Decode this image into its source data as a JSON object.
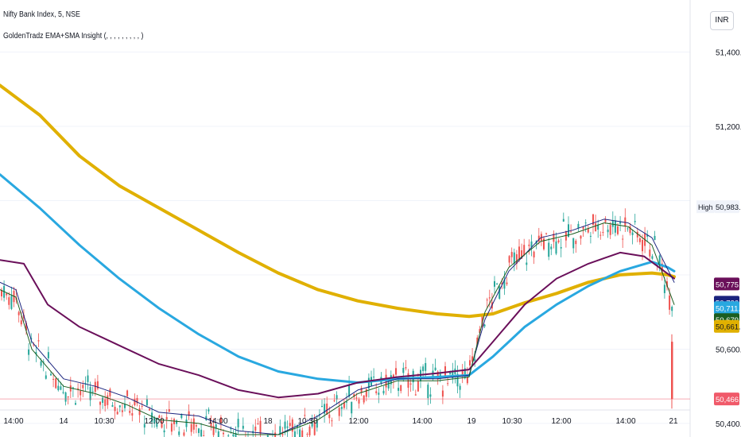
{
  "header": {
    "title": "Nifty Bank Index, 5, NSE",
    "indicator": "GoldenTradz EMA+SMA Insight (, , , , , , , , , )"
  },
  "currency_button": "INR",
  "price_axis": {
    "ticks": [
      {
        "value": 51400,
        "label": "51,400.00"
      },
      {
        "value": 51200,
        "label": "51,200.00"
      },
      {
        "value": 50600,
        "label": "50,600.00"
      },
      {
        "value": 50400,
        "label": "50,400.00"
      }
    ],
    "labels": [
      {
        "value": 50983.5,
        "label": "50,983.50",
        "bg": "#f0f3fa",
        "fg": "#131722",
        "tag": "High"
      },
      {
        "value": 50775.57,
        "label": "50,775.57",
        "bg": "#6a0f5a",
        "fg": "#ffffff"
      },
      {
        "value": 50726.29,
        "label": "50,726.29",
        "bg": "#1a237e",
        "fg": "#ffffff"
      },
      {
        "value": 50711.56,
        "label": "50,711.56",
        "bg": "#29a8e0",
        "fg": "#ffffff"
      },
      {
        "value": 50679.58,
        "label": "50,679.58",
        "bg": "#1b5e20",
        "fg": "#ffffff"
      },
      {
        "value": 50661.48,
        "label": "50,661.48",
        "bg": "#e0b000",
        "fg": "#131722"
      },
      {
        "value": 50466.0,
        "label": "50,466.00",
        "bg": "#f05a6a",
        "fg": "#ffffff"
      }
    ]
  },
  "time_axis": [
    "14:00",
    "14",
    "10:30",
    "12:00",
    "14:00",
    "18",
    "10:30",
    "12:00",
    "14:00",
    "19",
    "10:30",
    "12:00",
    "14:00",
    "21"
  ],
  "chart_data": {
    "type": "candlestick",
    "title": "Nifty Bank Index, 5, NSE",
    "ylim": [
      50370,
      51540
    ],
    "last_price": 50466.0,
    "x_labels": [
      "14:00",
      "14",
      "10:30",
      "12:00",
      "14:00",
      "18",
      "10:30",
      "12:00",
      "14:00",
      "19",
      "10:30",
      "12:00",
      "14:00",
      "21"
    ],
    "series": [
      {
        "color": "#e0b000",
        "type": "line",
        "points": [
          [
            0,
            51310
          ],
          [
            50,
            51230
          ],
          [
            100,
            51120
          ],
          [
            150,
            51040
          ],
          [
            200,
            50980
          ],
          [
            250,
            50920
          ],
          [
            300,
            50860
          ],
          [
            350,
            50805
          ],
          [
            400,
            50760
          ],
          [
            450,
            50730
          ],
          [
            500,
            50710
          ],
          [
            550,
            50695
          ],
          [
            590,
            50688
          ],
          [
            620,
            50695
          ],
          [
            660,
            50725
          ],
          [
            700,
            50750
          ],
          [
            740,
            50780
          ],
          [
            780,
            50800
          ],
          [
            820,
            50805
          ],
          [
            840,
            50800
          ],
          [
            848,
            50795
          ]
        ]
      },
      {
        "color": "#29a8e0",
        "type": "line",
        "points": [
          [
            0,
            51070
          ],
          [
            50,
            50980
          ],
          [
            100,
            50880
          ],
          [
            150,
            50790
          ],
          [
            200,
            50710
          ],
          [
            250,
            50640
          ],
          [
            300,
            50580
          ],
          [
            350,
            50540
          ],
          [
            400,
            50520
          ],
          [
            450,
            50510
          ],
          [
            500,
            50520
          ],
          [
            550,
            50525
          ],
          [
            590,
            50530
          ],
          [
            620,
            50580
          ],
          [
            660,
            50660
          ],
          [
            700,
            50720
          ],
          [
            740,
            50770
          ],
          [
            780,
            50810
          ],
          [
            820,
            50835
          ],
          [
            840,
            50820
          ],
          [
            848,
            50810
          ]
        ]
      },
      {
        "color": "#6a0f5a",
        "type": "line",
        "points": [
          [
            0,
            50840
          ],
          [
            30,
            50830
          ],
          [
            60,
            50720
          ],
          [
            100,
            50660
          ],
          [
            150,
            50610
          ],
          [
            200,
            50560
          ],
          [
            250,
            50530
          ],
          [
            300,
            50490
          ],
          [
            350,
            50470
          ],
          [
            400,
            50480
          ],
          [
            450,
            50510
          ],
          [
            500,
            50525
          ],
          [
            550,
            50535
          ],
          [
            590,
            50545
          ],
          [
            620,
            50620
          ],
          [
            660,
            50720
          ],
          [
            700,
            50790
          ],
          [
            740,
            50830
          ],
          [
            780,
            50860
          ],
          [
            810,
            50850
          ],
          [
            848,
            50790
          ]
        ]
      },
      {
        "color": "#1a237e",
        "type": "line",
        "points": [
          [
            0,
            50780
          ],
          [
            20,
            50760
          ],
          [
            40,
            50620
          ],
          [
            80,
            50520
          ],
          [
            120,
            50500
          ],
          [
            160,
            50470
          ],
          [
            200,
            50430
          ],
          [
            250,
            50420
          ],
          [
            300,
            50380
          ],
          [
            350,
            50370
          ],
          [
            400,
            50420
          ],
          [
            450,
            50490
          ],
          [
            500,
            50520
          ],
          [
            550,
            50520
          ],
          [
            590,
            50530
          ],
          [
            610,
            50680
          ],
          [
            640,
            50810
          ],
          [
            680,
            50900
          ],
          [
            720,
            50920
          ],
          [
            760,
            50950
          ],
          [
            790,
            50940
          ],
          [
            820,
            50900
          ],
          [
            848,
            50780
          ]
        ]
      },
      {
        "color": "#1b5e20",
        "type": "line",
        "points": [
          [
            0,
            50760
          ],
          [
            20,
            50740
          ],
          [
            40,
            50600
          ],
          [
            80,
            50500
          ],
          [
            120,
            50480
          ],
          [
            160,
            50450
          ],
          [
            200,
            50410
          ],
          [
            250,
            50400
          ],
          [
            300,
            50370
          ],
          [
            350,
            50370
          ],
          [
            400,
            50410
          ],
          [
            450,
            50480
          ],
          [
            500,
            50515
          ],
          [
            550,
            50515
          ],
          [
            590,
            50525
          ],
          [
            610,
            50700
          ],
          [
            640,
            50820
          ],
          [
            680,
            50890
          ],
          [
            720,
            50910
          ],
          [
            760,
            50940
          ],
          [
            790,
            50930
          ],
          [
            820,
            50880
          ],
          [
            848,
            50720
          ]
        ]
      }
    ]
  }
}
